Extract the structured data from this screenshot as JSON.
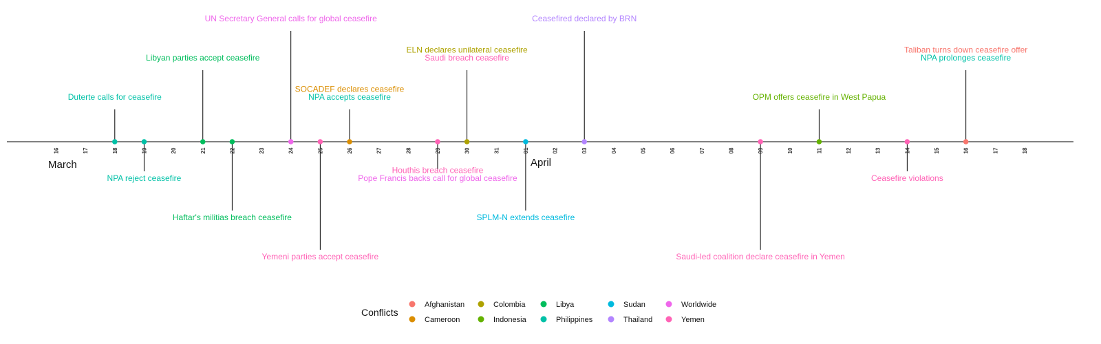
{
  "chart_data": {
    "type": "timeline",
    "x_type": "date",
    "xlim": [
      "2020-03-16",
      "2020-04-18"
    ],
    "ticks": [
      "16",
      "17",
      "18",
      "19",
      "20",
      "21",
      "22",
      "23",
      "24",
      "25",
      "26",
      "27",
      "28",
      "29",
      "30",
      "31",
      "01",
      "02",
      "03",
      "04",
      "05",
      "06",
      "07",
      "08",
      "09",
      "10",
      "11",
      "12",
      "13",
      "14",
      "15",
      "16",
      "17",
      "18"
    ],
    "tick_dates": [
      "2020-03-16",
      "2020-03-17",
      "2020-03-18",
      "2020-03-19",
      "2020-03-20",
      "2020-03-21",
      "2020-03-22",
      "2020-03-23",
      "2020-03-24",
      "2020-03-25",
      "2020-03-26",
      "2020-03-27",
      "2020-03-28",
      "2020-03-29",
      "2020-03-30",
      "2020-03-31",
      "2020-04-01",
      "2020-04-02",
      "2020-04-03",
      "2020-04-04",
      "2020-04-05",
      "2020-04-06",
      "2020-04-07",
      "2020-04-08",
      "2020-04-09",
      "2020-04-10",
      "2020-04-11",
      "2020-04-12",
      "2020-04-13",
      "2020-04-14",
      "2020-04-15",
      "2020-04-16",
      "2020-04-17",
      "2020-04-18"
    ],
    "months": [
      {
        "label": "March",
        "date": "2020-03-16"
      },
      {
        "label": "April",
        "date": "2020-04-01"
      }
    ],
    "legend": {
      "title": "Conflicts",
      "position": "bottom",
      "columns": [
        [
          "Afghanistan",
          "Cameroon"
        ],
        [
          "Colombia",
          "Indonesia"
        ],
        [
          "Libya",
          "Philippines"
        ],
        [
          "Sudan",
          "Thailand"
        ],
        [
          "Worldwide",
          "Yemen"
        ]
      ]
    },
    "colors": {
      "Afghanistan": "#F8766D",
      "Cameroon": "#DB8E00",
      "Colombia": "#AEA200",
      "Indonesia": "#64B200",
      "Libya": "#00BD5C",
      "Philippines": "#00C1A7",
      "Sudan": "#00BADE",
      "Thailand": "#B385FF",
      "Worldwide": "#EF67EB",
      "Yemen": "#FF63B6"
    },
    "events": [
      {
        "date": "2020-03-18",
        "conflict": "Philippines",
        "level": 2,
        "labels": [
          "Duterte calls for ceasefire"
        ]
      },
      {
        "date": "2020-03-19",
        "conflict": "Philippines",
        "level": -2,
        "labels": [
          "NPA reject ceasefire"
        ]
      },
      {
        "date": "2020-03-21",
        "conflict": "Libya",
        "level": 4,
        "labels": [
          "Libyan parties accept ceasefire"
        ]
      },
      {
        "date": "2020-03-22",
        "conflict": "Libya",
        "level": -4,
        "labels": [
          "Haftar's militias breach ceasefire"
        ]
      },
      {
        "date": "2020-03-24",
        "conflict": "Worldwide",
        "level": 6,
        "labels": [
          "UN Secretary General calls for global ceasefire"
        ]
      },
      {
        "date": "2020-03-25",
        "conflict": "Yemen",
        "level": -6,
        "labels": [
          "Yemeni parties accept ceasefire"
        ]
      },
      {
        "date": "2020-03-26",
        "conflict": "Cameroon",
        "level": 2,
        "labels": [
          "SOCADEF declares ceasefire"
        ]
      },
      {
        "date": "2020-03-26",
        "conflict": "Philippines",
        "level": 2,
        "labels": [
          "NPA accepts ceasefire"
        ]
      },
      {
        "date": "2020-03-29",
        "conflict": "Yemen",
        "level": -2,
        "labels": [
          "Houthis breach ceasefire"
        ]
      },
      {
        "date": "2020-03-29",
        "conflict": "Worldwide",
        "level": -2,
        "labels": [
          "Pope Francis backs call for global ceasefire"
        ]
      },
      {
        "date": "2020-03-30",
        "conflict": "Colombia",
        "level": 4,
        "labels": [
          "ELN declares unilateral ceasefire"
        ]
      },
      {
        "date": "2020-03-30",
        "conflict": "Yemen",
        "level": 4,
        "labels": [
          "Saudi breach ceasefire"
        ]
      },
      {
        "date": "2020-04-01",
        "conflict": "Sudan",
        "level": -4,
        "labels": [
          "SPLM-N extends ceasefire"
        ]
      },
      {
        "date": "2020-04-03",
        "conflict": "Thailand",
        "level": 6,
        "labels": [
          "Ceasefired declared by BRN"
        ]
      },
      {
        "date": "2020-04-09",
        "conflict": "Yemen",
        "level": -6,
        "labels": [
          "Saudi-led coalition declare ceasefire in Yemen"
        ]
      },
      {
        "date": "2020-04-11",
        "conflict": "Indonesia",
        "level": 2,
        "labels": [
          "OPM offers ceasefire in West Papua"
        ]
      },
      {
        "date": "2020-04-14",
        "conflict": "Yemen",
        "level": -2,
        "labels": [
          "Ceasefire violations"
        ]
      },
      {
        "date": "2020-04-16",
        "conflict": "Afghanistan",
        "level": 4,
        "labels": [
          "Taliban turns down ceasefire offer"
        ]
      },
      {
        "date": "2020-04-16",
        "conflict": "Philippines",
        "level": 4,
        "labels": [
          "NPA prolonges ceasefire"
        ]
      }
    ]
  }
}
